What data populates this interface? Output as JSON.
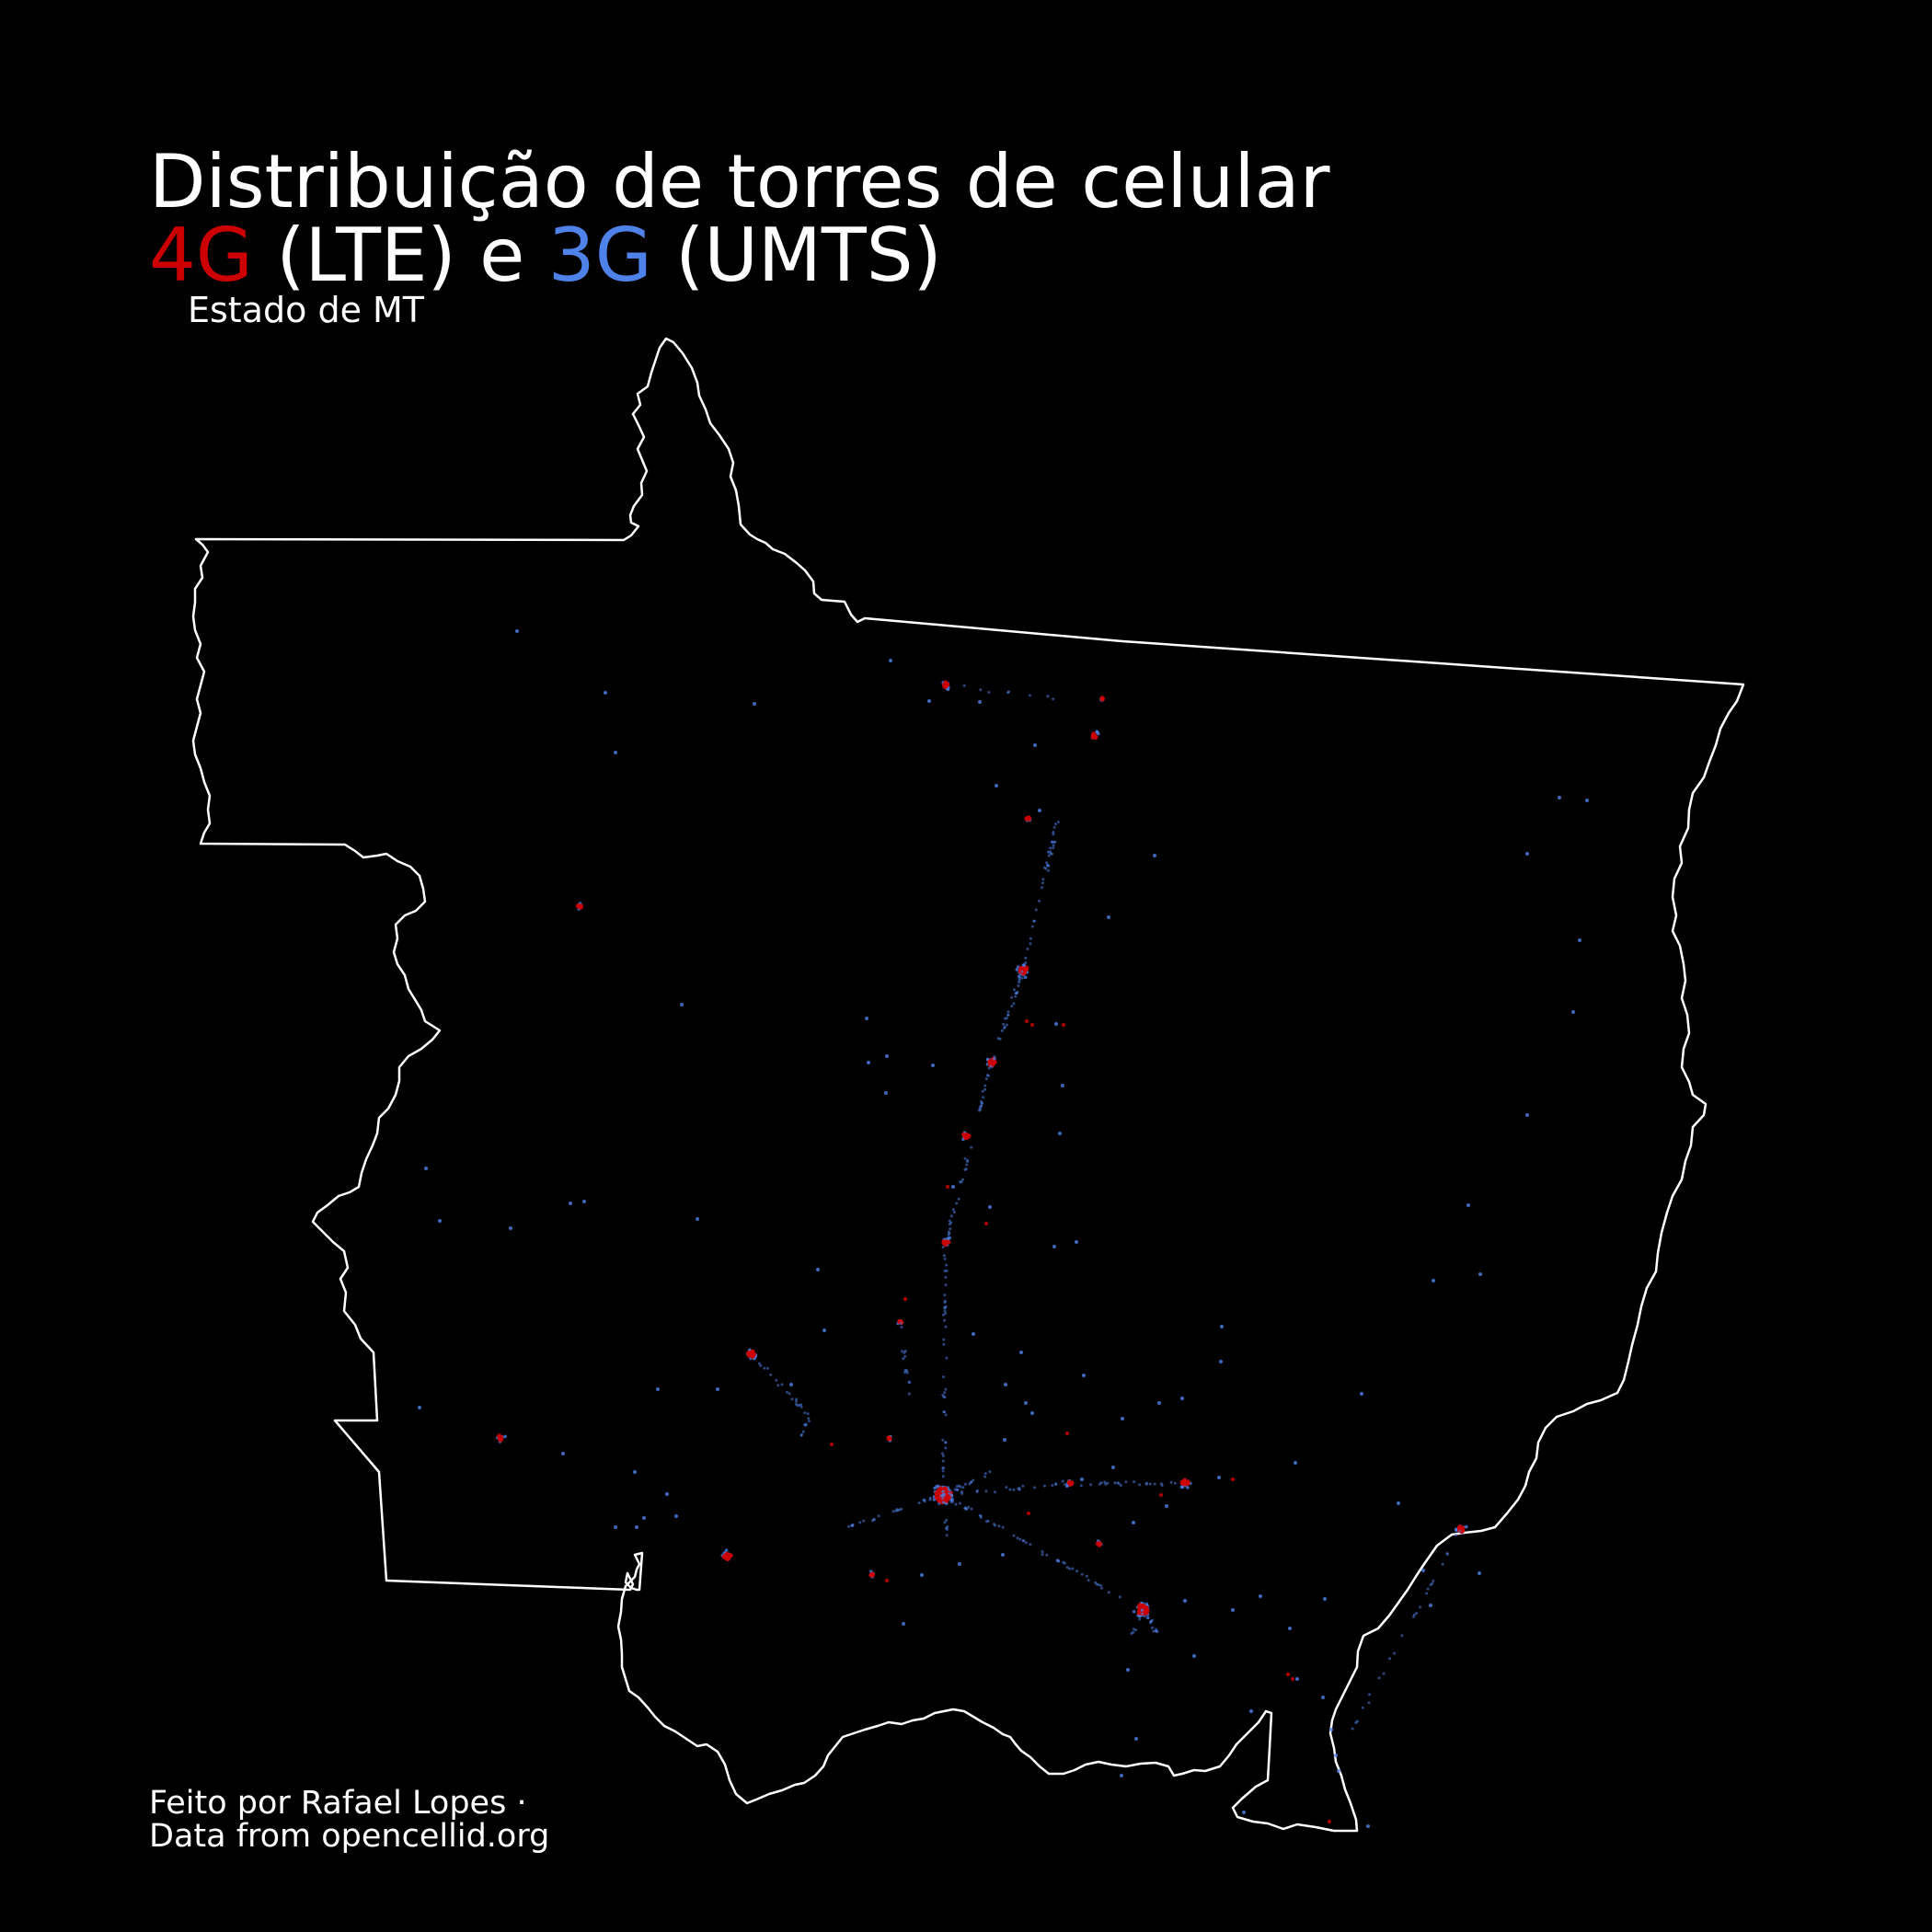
{
  "title": {
    "line1": "Distribuição de torres de celular",
    "tech1": "4G",
    "tech1_detail": " (LTE) e ",
    "tech2": "3G",
    "tech2_detail": " (UMTS)"
  },
  "subtitle": "Estado de MT",
  "credits": {
    "author": "Feito por Rafael Lopes ·",
    "source": "Data from opencellid.org"
  },
  "colors": {
    "background": "#000000",
    "border": "#ffffff",
    "lte_4g": "#cc0000",
    "umts_3g": "#4f82e8"
  },
  "legend": [
    {
      "label": "4G",
      "technology": "LTE",
      "color": "#cc0000"
    },
    {
      "label": "3G",
      "technology": "UMTS",
      "color": "#4f82e8"
    }
  ]
}
